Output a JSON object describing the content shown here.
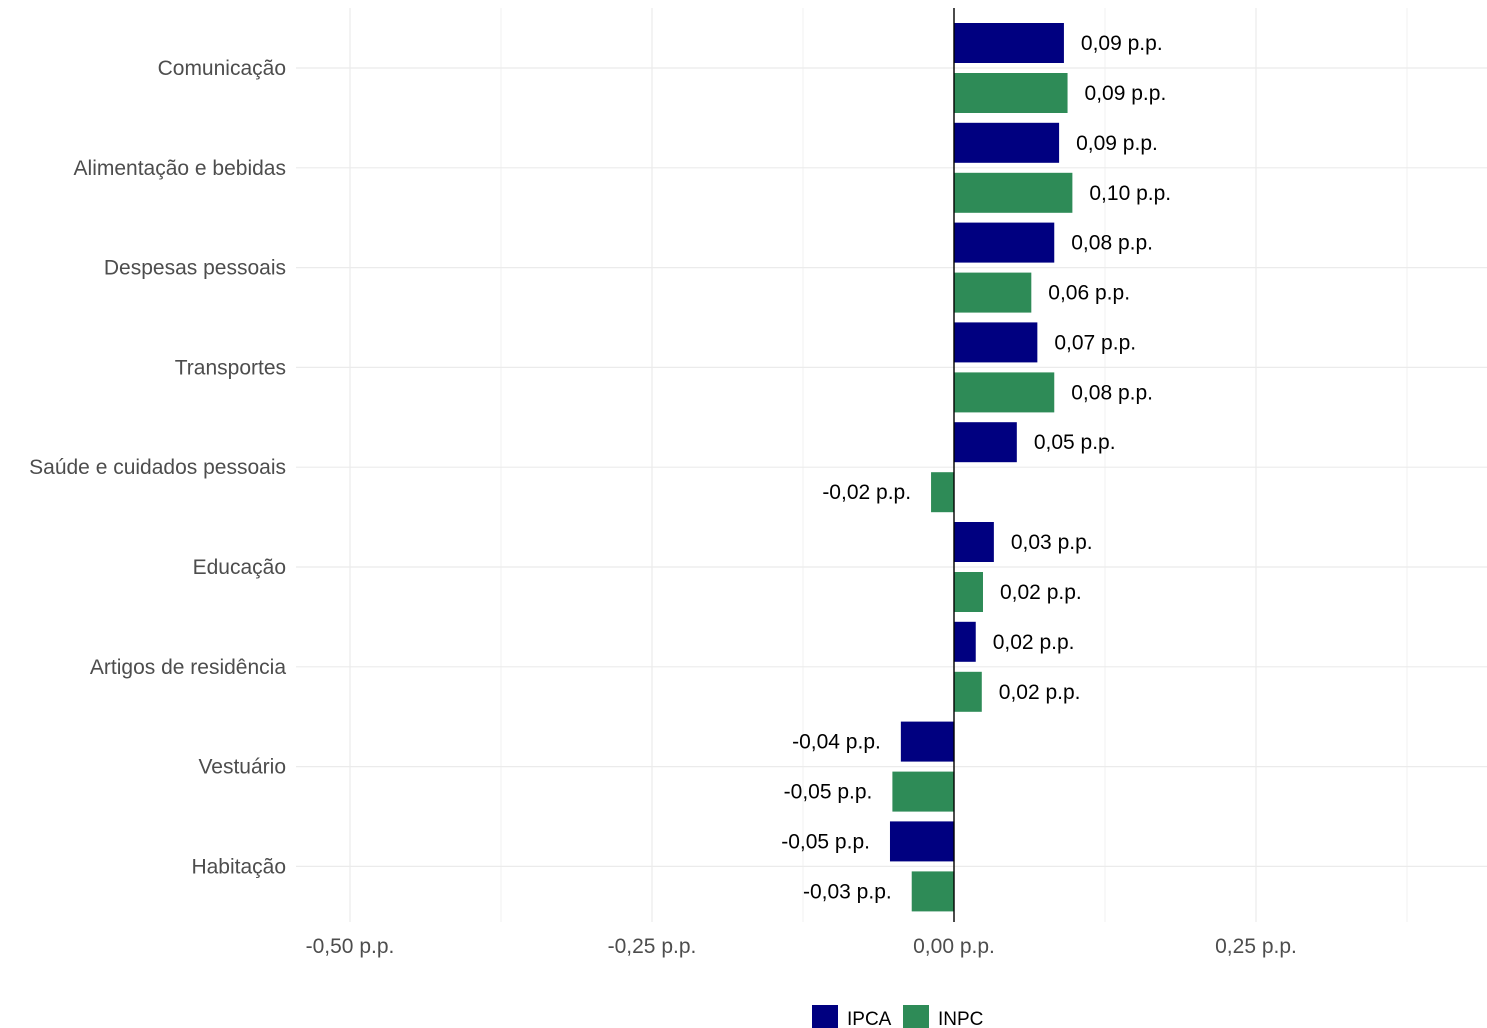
{
  "chart_data": {
    "type": "bar",
    "orientation": "horizontal",
    "categories": [
      "Comunicação",
      "Alimentação e bebidas",
      "Despesas pessoais",
      "Transportes",
      "Saúde e cuidados pessoais",
      "Educação",
      "Artigos de residência",
      "Vestuário",
      "Habitação"
    ],
    "series": [
      {
        "name": "IPCA",
        "color": "#000080",
        "values": [
          0.091,
          0.087,
          0.083,
          0.069,
          0.052,
          0.033,
          0.018,
          -0.044,
          -0.053
        ],
        "labels": [
          "0,09 p.p.",
          "0,09 p.p.",
          "0,08 p.p.",
          "0,07 p.p.",
          "0,05 p.p.",
          "0,03 p.p.",
          "0,02 p.p.",
          "-0,04 p.p.",
          "-0,05 p.p."
        ]
      },
      {
        "name": "INPC",
        "color": "#2e8b57",
        "values": [
          0.094,
          0.098,
          0.064,
          0.083,
          -0.019,
          0.024,
          0.023,
          -0.051,
          -0.035
        ],
        "labels": [
          "0,09 p.p.",
          "0,10 p.p.",
          "0,06 p.p.",
          "0,08 p.p.",
          "-0,02 p.p.",
          "0,02 p.p.",
          "0,02 p.p.",
          "-0,05 p.p.",
          "-0,03 p.p."
        ]
      }
    ],
    "xticks": [
      -0.5,
      -0.25,
      0,
      0.25
    ],
    "xtick_labels": [
      "-0,50 p.p.",
      "-0,25 p.p.",
      "0,00 p.p.",
      "0,25 p.p."
    ],
    "xlim": [
      -0.55,
      0.44
    ],
    "grid": true,
    "legend_position": "bottom"
  }
}
